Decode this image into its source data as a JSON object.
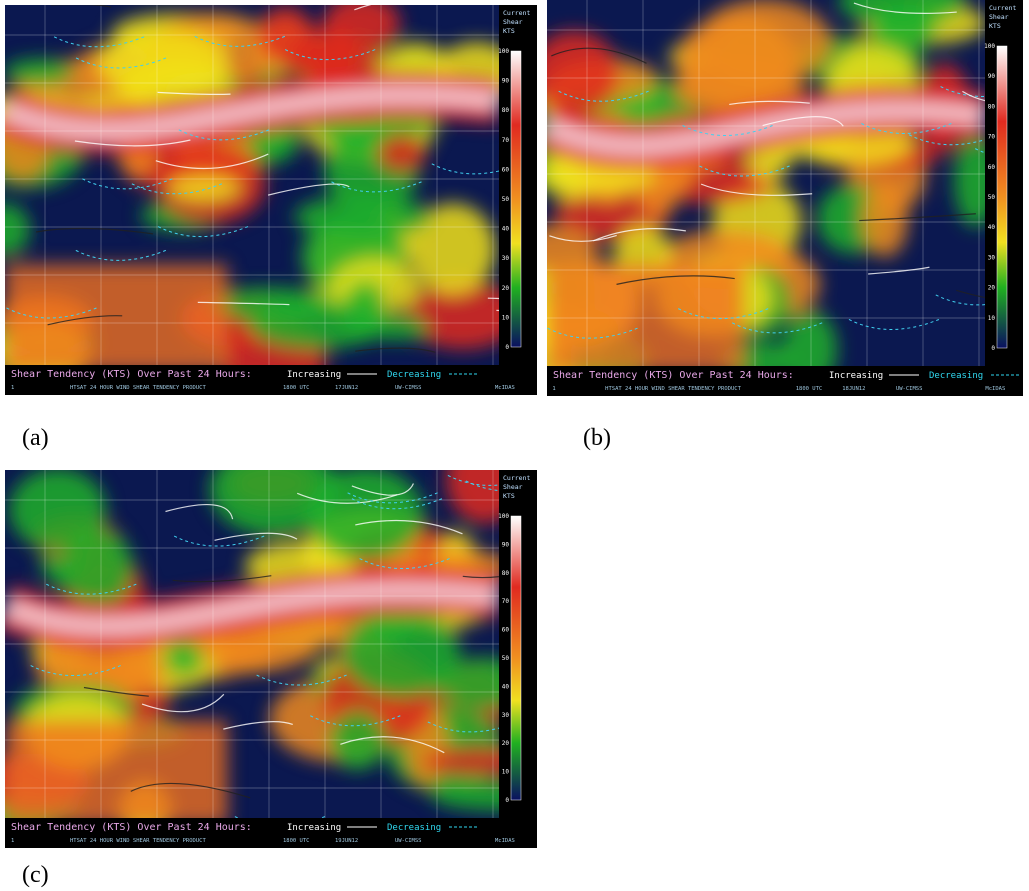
{
  "panels": [
    {
      "label": "(a)",
      "colorbar": {
        "title": [
          "Current",
          "Shear",
          "KTS"
        ],
        "ticks": [
          100,
          90,
          80,
          70,
          60,
          50,
          40,
          30,
          20,
          10,
          0
        ]
      },
      "footer": {
        "legend_title": "Shear Tendency (KTS) Over Past 24 Hours:",
        "increasing": "Increasing",
        "decreasing": "Decreasing",
        "frame": "1",
        "product": "HTSAT 24 HOUR WIND SHEAR TENDENCY PRODUCT",
        "time": "1800 UTC",
        "date": "17JUN12",
        "source": "UW-CIMSS",
        "software": "McIDAS"
      }
    },
    {
      "label": "(b)",
      "colorbar": {
        "title": [
          "Current",
          "Shear",
          "KTS"
        ],
        "ticks": [
          100,
          90,
          80,
          70,
          60,
          50,
          40,
          30,
          20,
          10,
          0
        ]
      },
      "footer": {
        "legend_title": "Shear Tendency (KTS) Over Past 24 Hours:",
        "increasing": "Increasing",
        "decreasing": "Decreasing",
        "frame": "1",
        "product": "HTSAT 24 HOUR WIND SHEAR TENDENCY PRODUCT",
        "time": "1800 UTC",
        "date": "18JUN12",
        "source": "UW-CIMSS",
        "software": "McIDAS"
      }
    },
    {
      "label": "(c)",
      "colorbar": {
        "title": [
          "Current",
          "Shear",
          "KTS"
        ],
        "ticks": [
          100,
          90,
          80,
          70,
          60,
          50,
          40,
          30,
          20,
          10,
          0
        ]
      },
      "footer": {
        "legend_title": "Shear Tendency (KTS) Over Past 24 Hours:",
        "increasing": "Increasing",
        "decreasing": "Decreasing",
        "frame": "1",
        "product": "HTSAT 24 HOUR WIND SHEAR TENDENCY PRODUCT",
        "time": "1800 UTC",
        "date": "19JUN12",
        "source": "UW-CIMSS",
        "software": "McIDAS"
      }
    }
  ]
}
